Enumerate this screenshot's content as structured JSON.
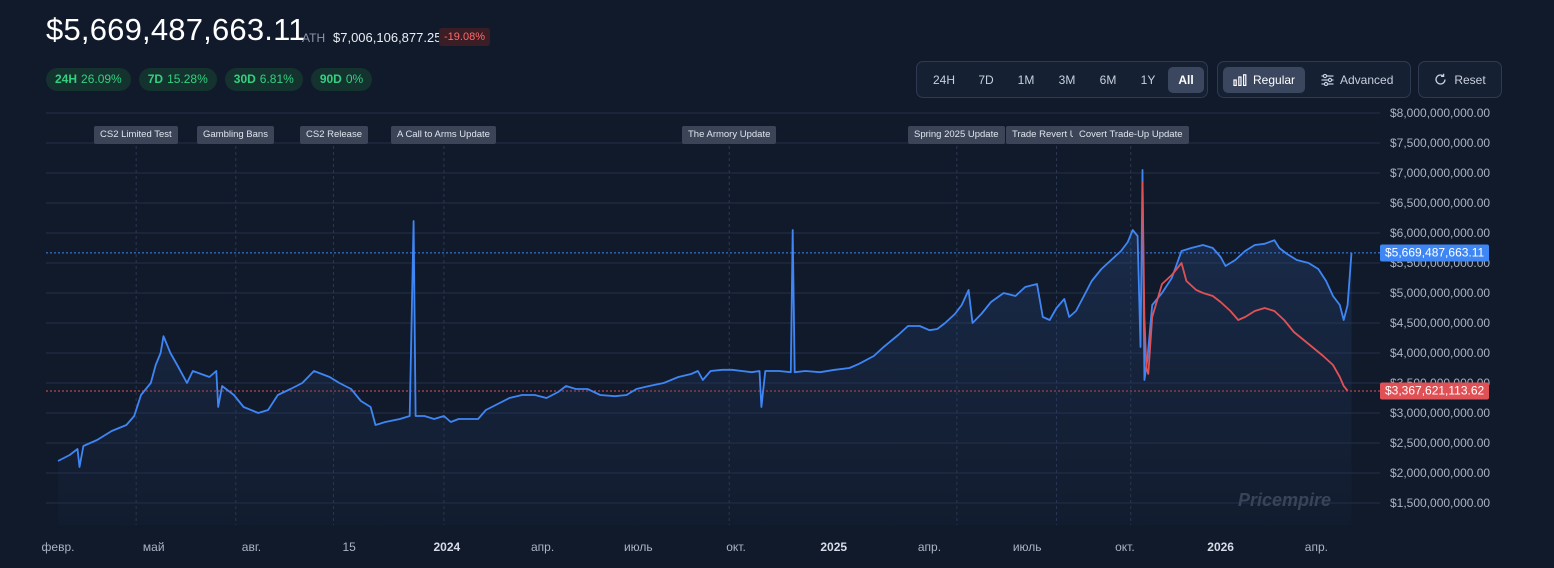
{
  "header": {
    "price": "$5,669,487,663.11",
    "ath_label": "ATH",
    "ath_value": "$7,006,106,877.25",
    "ath_change": "-19.08%",
    "changes": [
      {
        "period": "24H",
        "value": "26.09%"
      },
      {
        "period": "7D",
        "value": "15.28%"
      },
      {
        "period": "30D",
        "value": "6.81%"
      },
      {
        "period": "90D",
        "value": "0%"
      }
    ]
  },
  "toolbar": {
    "ranges": [
      "24H",
      "7D",
      "1M",
      "3M",
      "6M",
      "1Y",
      "All"
    ],
    "active_range": "All",
    "modes": [
      {
        "label": "Regular",
        "icon": "bar-chart-icon",
        "active": true
      },
      {
        "label": "Advanced",
        "icon": "sliders-icon",
        "active": false
      }
    ],
    "reset_label": "Reset",
    "reset_icon": "refresh-icon"
  },
  "events": [
    {
      "label": "CS2 Limited Test",
      "t": 0.8
    },
    {
      "label": "Gambling Bans",
      "t": 1.82
    },
    {
      "label": "CS2 Release",
      "t": 2.82
    },
    {
      "label": "A Call to Arms Update",
      "t": 3.95
    },
    {
      "label": "The Armory Update",
      "t": 6.87
    },
    {
      "label": "Spring 2025 Update",
      "t": 9.2
    },
    {
      "label": "Trade Revert Update",
      "t": 10.22
    },
    {
      "label": "Covert Trade-Up Update",
      "t": 10.98
    }
  ],
  "chart_data": {
    "type": "line",
    "x_unit": "months since Feb 2023",
    "x_ticks": [
      {
        "label": "февр.",
        "t": 0,
        "year": false
      },
      {
        "label": "май",
        "t": 0.98,
        "year": false
      },
      {
        "label": "авг.",
        "t": 1.98,
        "year": false
      },
      {
        "label": "15",
        "t": 2.98,
        "year": false
      },
      {
        "label": "2024",
        "t": 3.98,
        "year": true
      },
      {
        "label": "апр.",
        "t": 4.96,
        "year": false
      },
      {
        "label": "июль",
        "t": 5.94,
        "year": false
      },
      {
        "label": "окт.",
        "t": 6.94,
        "year": false
      },
      {
        "label": "2025",
        "t": 7.94,
        "year": true
      },
      {
        "label": "апр.",
        "t": 8.92,
        "year": false
      },
      {
        "label": "июль",
        "t": 9.92,
        "year": false
      },
      {
        "label": "окт.",
        "t": 10.92,
        "year": false
      },
      {
        "label": "2026",
        "t": 11.9,
        "year": true
      },
      {
        "label": "апр.",
        "t": 12.88,
        "year": false
      }
    ],
    "y_ticks": [
      8000000000,
      7500000000,
      7000000000,
      6500000000,
      6000000000,
      5500000000,
      5000000000,
      4500000000,
      4000000000,
      3500000000,
      3000000000,
      2500000000,
      2000000000,
      1500000000
    ],
    "y_tick_labels": [
      "$8,000,000,000.00",
      "$7,500,000,000.00",
      "$7,000,000,000.00",
      "$6,500,000,000.00",
      "$6,000,000,000.00",
      "$5,500,000,000.00",
      "$5,000,000,000.00",
      "$4,500,000,000.00",
      "$4,000,000,000.00",
      "$3,500,000,000.00",
      "$3,000,000,000.00",
      "$2,500,000,000.00",
      "$2,000,000,000.00",
      "$1,500,000,000.00"
    ],
    "ylim": [
      1250000000,
      8000000000
    ],
    "xlim": [
      0,
      13.45
    ],
    "grid": true,
    "series": [
      {
        "color": "#3f86f5",
        "points": [
          [
            0,
            2.2
          ],
          [
            0.12,
            2.3
          ],
          [
            0.2,
            2.4
          ],
          [
            0.22,
            2.1
          ],
          [
            0.26,
            2.45
          ],
          [
            0.4,
            2.55
          ],
          [
            0.55,
            2.7
          ],
          [
            0.7,
            2.8
          ],
          [
            0.78,
            2.95
          ],
          [
            0.85,
            3.3
          ],
          [
            0.95,
            3.5
          ],
          [
            1.0,
            3.8
          ],
          [
            1.05,
            4.0
          ],
          [
            1.08,
            4.28
          ],
          [
            1.15,
            4.0
          ],
          [
            1.22,
            3.8
          ],
          [
            1.32,
            3.5
          ],
          [
            1.38,
            3.7
          ],
          [
            1.55,
            3.6
          ],
          [
            1.62,
            3.7
          ],
          [
            1.64,
            3.1
          ],
          [
            1.68,
            3.45
          ],
          [
            1.8,
            3.3
          ],
          [
            1.9,
            3.1
          ],
          [
            2.05,
            3.0
          ],
          [
            2.15,
            3.05
          ],
          [
            2.25,
            3.3
          ],
          [
            2.38,
            3.4
          ],
          [
            2.5,
            3.5
          ],
          [
            2.62,
            3.7
          ],
          [
            2.78,
            3.6
          ],
          [
            2.88,
            3.5
          ],
          [
            3.0,
            3.4
          ],
          [
            3.1,
            3.2
          ],
          [
            3.2,
            3.1
          ],
          [
            3.25,
            2.8
          ],
          [
            3.35,
            2.85
          ],
          [
            3.5,
            2.9
          ],
          [
            3.6,
            2.95
          ],
          [
            3.64,
            6.2
          ],
          [
            3.66,
            2.95
          ],
          [
            3.75,
            2.95
          ],
          [
            3.85,
            2.9
          ],
          [
            3.95,
            2.95
          ],
          [
            4.02,
            2.85
          ],
          [
            4.1,
            2.9
          ],
          [
            4.2,
            2.9
          ],
          [
            4.3,
            2.9
          ],
          [
            4.38,
            3.05
          ],
          [
            4.5,
            3.15
          ],
          [
            4.62,
            3.25
          ],
          [
            4.75,
            3.3
          ],
          [
            4.88,
            3.3
          ],
          [
            5.0,
            3.25
          ],
          [
            5.12,
            3.35
          ],
          [
            5.2,
            3.45
          ],
          [
            5.3,
            3.4
          ],
          [
            5.42,
            3.4
          ],
          [
            5.55,
            3.3
          ],
          [
            5.7,
            3.28
          ],
          [
            5.82,
            3.3
          ],
          [
            5.92,
            3.4
          ],
          [
            6.05,
            3.45
          ],
          [
            6.2,
            3.5
          ],
          [
            6.35,
            3.6
          ],
          [
            6.48,
            3.65
          ],
          [
            6.55,
            3.7
          ],
          [
            6.6,
            3.55
          ],
          [
            6.68,
            3.7
          ],
          [
            6.8,
            3.72
          ],
          [
            6.9,
            3.72
          ],
          [
            7.0,
            3.7
          ],
          [
            7.1,
            3.68
          ],
          [
            7.18,
            3.7
          ],
          [
            7.2,
            3.1
          ],
          [
            7.24,
            3.7
          ],
          [
            7.38,
            3.7
          ],
          [
            7.5,
            3.68
          ],
          [
            7.52,
            6.05
          ],
          [
            7.54,
            3.68
          ],
          [
            7.65,
            3.7
          ],
          [
            7.8,
            3.68
          ],
          [
            7.95,
            3.72
          ],
          [
            8.1,
            3.75
          ],
          [
            8.2,
            3.82
          ],
          [
            8.35,
            3.95
          ],
          [
            8.45,
            4.1
          ],
          [
            8.6,
            4.3
          ],
          [
            8.7,
            4.45
          ],
          [
            8.82,
            4.45
          ],
          [
            8.92,
            4.38
          ],
          [
            9.0,
            4.4
          ],
          [
            9.08,
            4.5
          ],
          [
            9.18,
            4.65
          ],
          [
            9.25,
            4.8
          ],
          [
            9.32,
            5.05
          ],
          [
            9.36,
            4.5
          ],
          [
            9.45,
            4.65
          ],
          [
            9.55,
            4.85
          ],
          [
            9.68,
            5.0
          ],
          [
            9.8,
            4.95
          ],
          [
            9.9,
            5.1
          ],
          [
            10.02,
            5.15
          ],
          [
            10.08,
            4.6
          ],
          [
            10.15,
            4.55
          ],
          [
            10.22,
            4.75
          ],
          [
            10.3,
            4.9
          ],
          [
            10.35,
            4.6
          ],
          [
            10.42,
            4.7
          ],
          [
            10.5,
            4.95
          ],
          [
            10.58,
            5.2
          ],
          [
            10.68,
            5.4
          ],
          [
            10.78,
            5.55
          ],
          [
            10.88,
            5.7
          ],
          [
            10.95,
            5.85
          ],
          [
            11.0,
            6.05
          ],
          [
            11.05,
            5.95
          ],
          [
            11.08,
            4.1
          ],
          [
            11.1,
            7.05
          ],
          [
            11.12,
            3.55
          ],
          [
            11.15,
            3.9
          ],
          [
            11.2,
            4.8
          ],
          [
            11.3,
            5.0
          ],
          [
            11.4,
            5.25
          ],
          [
            11.5,
            5.7
          ],
          [
            11.6,
            5.75
          ],
          [
            11.72,
            5.8
          ],
          [
            11.82,
            5.75
          ],
          [
            11.9,
            5.6
          ],
          [
            11.95,
            5.45
          ],
          [
            12.05,
            5.55
          ],
          [
            12.15,
            5.7
          ],
          [
            12.25,
            5.8
          ],
          [
            12.35,
            5.82
          ],
          [
            12.45,
            5.88
          ],
          [
            12.5,
            5.75
          ],
          [
            12.58,
            5.65
          ],
          [
            12.68,
            5.55
          ],
          [
            12.8,
            5.5
          ],
          [
            12.9,
            5.4
          ],
          [
            12.98,
            5.2
          ],
          [
            13.05,
            4.95
          ],
          [
            13.12,
            4.8
          ],
          [
            13.16,
            4.55
          ],
          [
            13.2,
            4.8
          ],
          [
            13.24,
            5.67
          ]
        ]
      },
      {
        "color": "#e05156",
        "points": [
          [
            11.1,
            6.85
          ],
          [
            11.12,
            4.6
          ],
          [
            11.14,
            3.75
          ],
          [
            11.16,
            3.65
          ],
          [
            11.2,
            4.6
          ],
          [
            11.3,
            5.15
          ],
          [
            11.4,
            5.3
          ],
          [
            11.5,
            5.5
          ],
          [
            11.55,
            5.2
          ],
          [
            11.65,
            5.05
          ],
          [
            11.72,
            5.0
          ],
          [
            11.82,
            4.95
          ],
          [
            11.9,
            4.85
          ],
          [
            12.0,
            4.7
          ],
          [
            12.08,
            4.55
          ],
          [
            12.15,
            4.6
          ],
          [
            12.25,
            4.7
          ],
          [
            12.35,
            4.75
          ],
          [
            12.45,
            4.7
          ],
          [
            12.55,
            4.55
          ],
          [
            12.65,
            4.35
          ],
          [
            12.8,
            4.15
          ],
          [
            12.95,
            3.95
          ],
          [
            13.05,
            3.8
          ],
          [
            13.12,
            3.6
          ],
          [
            13.16,
            3.45
          ],
          [
            13.2,
            3.37
          ]
        ]
      }
    ],
    "current_markers": [
      {
        "label": "$5,669,487,663.11",
        "value": 5669487663.11,
        "color": "#3f86f5"
      },
      {
        "label": "$3,367,621,113.62",
        "value": 3367621113.62,
        "color": "#e05156"
      }
    ]
  },
  "watermark": "Pricempire"
}
